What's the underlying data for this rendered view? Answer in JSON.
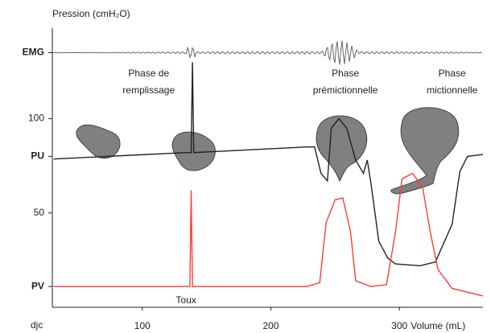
{
  "chart_data": {
    "type": "line",
    "y_label": "Pression (cmH₂O)",
    "x_label": "Volume (mL)",
    "logo": "djc",
    "annotations": [
      {
        "lines": [
          "Phase de",
          "remplissage"
        ],
        "x": 105
      },
      {
        "lines": [
          "Phase",
          "prémictionnelle"
        ],
        "x": 258
      },
      {
        "lines": [
          "Phase",
          "mictionnelle"
        ],
        "x": 341
      },
      {
        "lines": [
          "Toux"
        ],
        "x": 134
      }
    ],
    "xlim": [
      30,
      365
    ],
    "ylim": [
      0,
      148
    ],
    "xticks": [
      100,
      200,
      300
    ],
    "yticks": [
      {
        "value": 135,
        "label": "EMG"
      },
      100,
      {
        "value": 80,
        "label": "PU"
      },
      50,
      {
        "value": 11,
        "label": "PV"
      }
    ],
    "series": [
      {
        "name": "PU",
        "color": "#222222",
        "x": [
          31,
          134,
          138,
          139,
          140,
          228,
          234,
          239,
          244,
          247,
          253,
          259,
          266,
          272,
          275,
          278,
          284,
          291,
          297,
          316,
          328,
          341,
          347,
          353,
          365
        ],
        "values": [
          78.6,
          82,
          82,
          130,
          82,
          85,
          85,
          71,
          67,
          95,
          100,
          95,
          78,
          71,
          78,
          65,
          35,
          26,
          23,
          22,
          24,
          44,
          72,
          80,
          81
        ]
      },
      {
        "name": "PV",
        "color": "#ff3b3b",
        "x": [
          31,
          134,
          137,
          138,
          139,
          228,
          238,
          243,
          250,
          256,
          262,
          266,
          278,
          290,
          297,
          302,
          310,
          318,
          324,
          330,
          341,
          365
        ],
        "values": [
          11,
          11,
          11,
          62,
          11,
          11,
          13,
          45,
          57,
          58,
          40,
          14,
          11,
          12,
          40,
          68,
          71,
          64,
          40,
          20,
          10,
          6
        ]
      }
    ]
  }
}
